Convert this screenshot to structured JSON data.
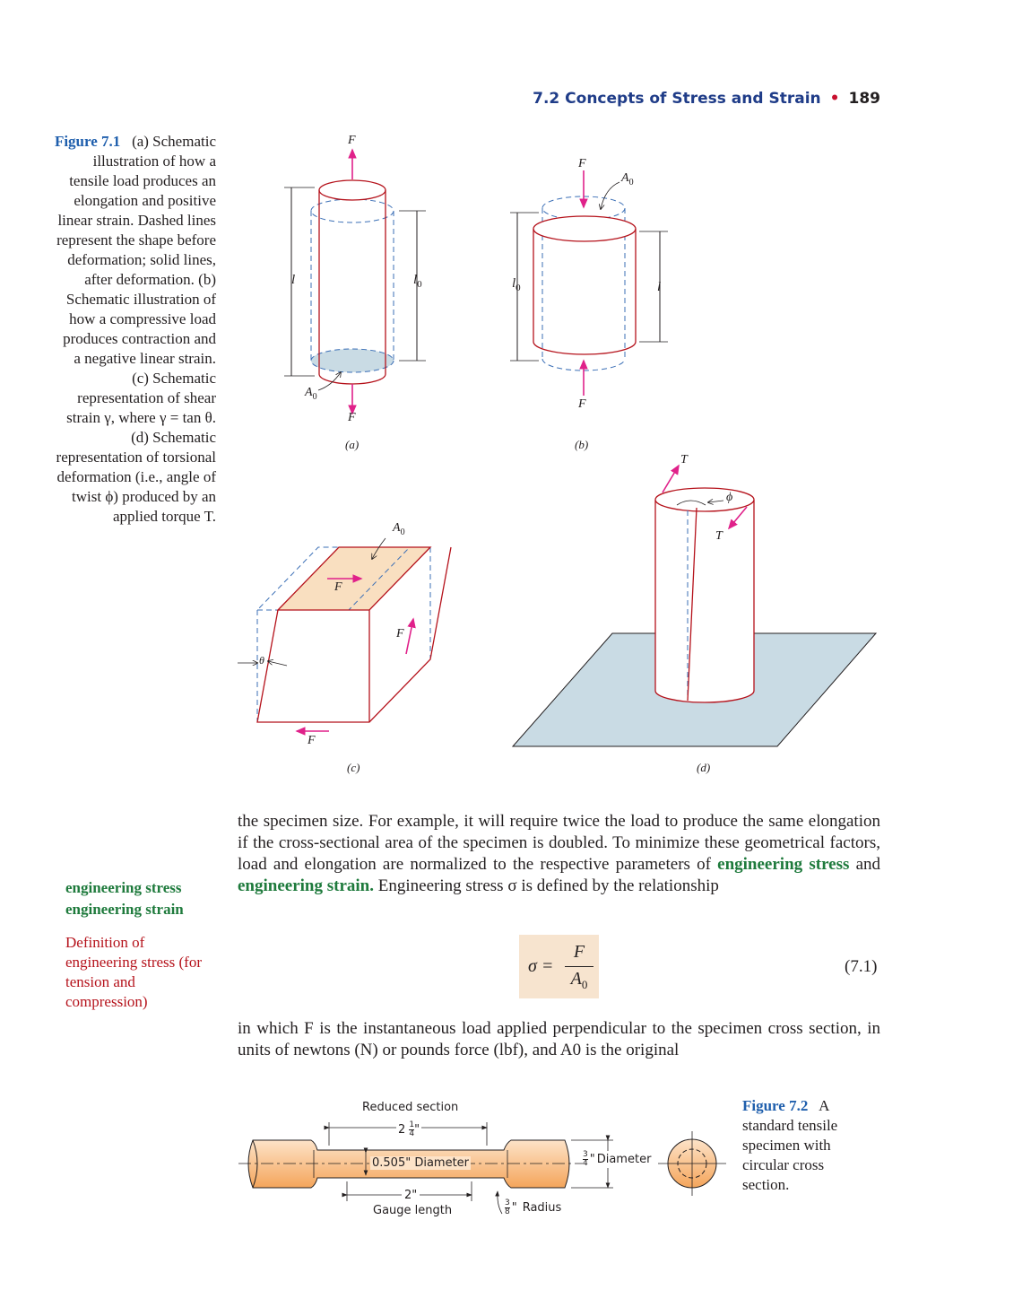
{
  "header": {
    "section_title": "7.2 Concepts of Stress and Strain",
    "separator": "•",
    "page_number": "189"
  },
  "figure_7_1": {
    "label": "Figure 7.1",
    "caption": "(a) Schematic illustration of how a tensile load produces an elongation and positive linear strain. Dashed lines represent the shape before deformation; solid lines, after deformation. (b) Schematic illustration of how a compressive load produces contraction and a negative linear strain. (c) Schematic representation of shear strain γ, where γ = tan θ. (d) Schematic representation of torsional deformation (i.e., angle of twist ϕ) produced by an applied torque T.",
    "sublabels": {
      "a": "(a)",
      "b": "(b)",
      "c": "(c)",
      "d": "(d)"
    },
    "symbols": {
      "F": "F",
      "A0": "A",
      "A0_sub": "0",
      "l": "l",
      "l0": "l",
      "l0_sub": "0",
      "T": "T",
      "phi": "ϕ",
      "theta": "θ"
    }
  },
  "body_text": {
    "para1_start": "the specimen size. For example, it will require twice the load to produce the same elongation if the cross-sectional area of the specimen is doubled. To minimize these geometrical factors, load and elongation are normalized to the respective parameters of",
    "kw1": "engineering stress",
    "and": "and",
    "kw2": "engineering strain.",
    "para1_end": "Engineering stress σ is defined by the relationship",
    "para2": "in which F is the instantaneous load applied perpendicular to the specimen cross section, in units of newtons (N) or pounds force (lbf), and A0 is the original"
  },
  "margin": {
    "term1": "engineering stress",
    "term2": "engineering strain",
    "definition": "Definition of engineering stress (for tension and compression)"
  },
  "equation": {
    "lhs": "σ =",
    "numerator": "F",
    "denominator": "A",
    "denominator_sub": "0",
    "number": "(7.1)"
  },
  "figure_7_2": {
    "label": "Figure 7.2",
    "caption": "A standard tensile specimen with circular cross section.",
    "reduced_section": "Reduced section",
    "reduced_length_whole": "2",
    "frac_num_1": "1",
    "frac_den_4": "4",
    "inch": "\"",
    "diameter_label": "0.505\" Diameter",
    "gauge_value": "2\"",
    "gauge_length": "Gauge length",
    "frac_num_3": "3",
    "frac_den_8": "8",
    "end_diameter": "Diameter",
    "radius": "Radius"
  }
}
